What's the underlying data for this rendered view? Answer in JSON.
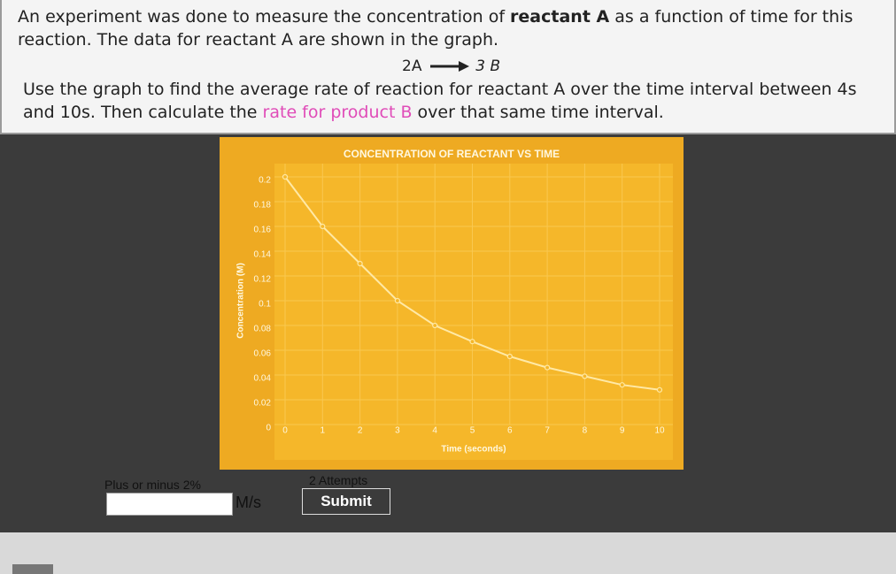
{
  "question": {
    "p1": [
      "An experiment was done to measure the concentration of ",
      "reactant A",
      " as a function of time for this reaction. The data for reactant A are shown in the graph."
    ],
    "reaction": {
      "left": "2A",
      "right": "3 B"
    },
    "p2": [
      "Use the graph to find the average rate of reaction for reactant A over the time interval between 4s and 10s. Then calculate the ",
      "rate for product B",
      " over that same time interval."
    ]
  },
  "chart_data": {
    "type": "line",
    "title": "CONCENTRATION OF REACTANT VS TIME",
    "x_label": "Time (seconds)",
    "y_label": "Concentration (M)",
    "x": [
      0,
      1,
      2,
      3,
      4,
      5,
      6,
      7,
      8,
      9,
      10
    ],
    "values": [
      0.2,
      0.16,
      0.13,
      0.1,
      0.08,
      0.067,
      0.055,
      0.046,
      0.039,
      0.032,
      0.028
    ],
    "color": "#ffe9a6",
    "xlim": [
      0,
      10
    ],
    "xticks": [
      0,
      1,
      2,
      3,
      4,
      5,
      6,
      7,
      8,
      9,
      10
    ],
    "ylim": [
      0,
      0.2
    ],
    "yticks": [
      0,
      0.02,
      0.04,
      0.06,
      0.08,
      0.1,
      0.12,
      0.14,
      0.16,
      0.18,
      0.2
    ],
    "grid": true
  },
  "form": {
    "tolerance": "Plus or minus 2%",
    "unit": "M/s",
    "attempts": "2 Attempts",
    "submit": "Submit"
  }
}
